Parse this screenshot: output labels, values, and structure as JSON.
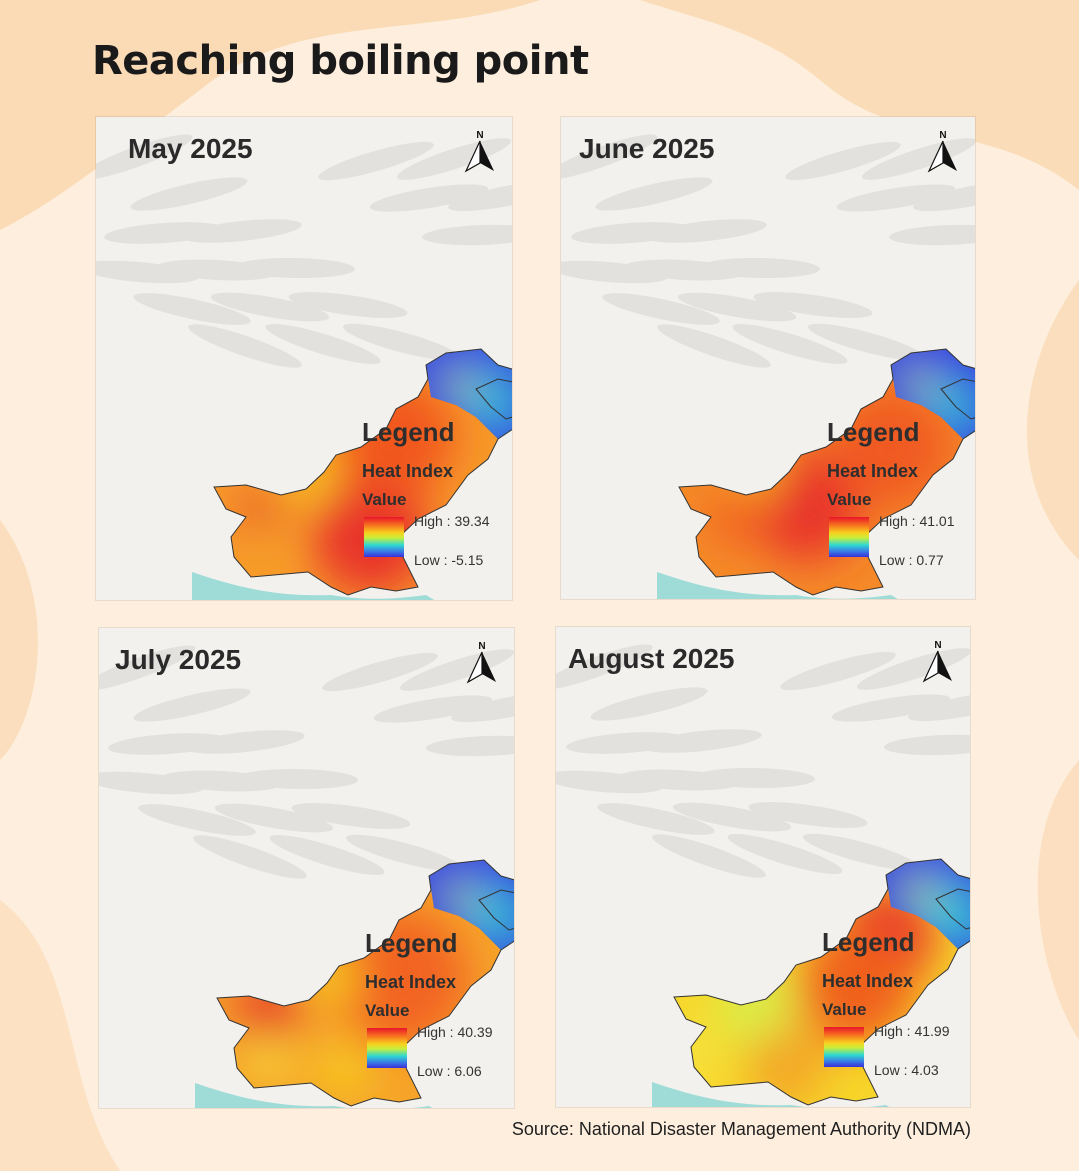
{
  "title": "Reaching boiling point",
  "source": "Source: National Disaster Management Authority (NDMA)",
  "legend_colors": {
    "high": "#e8142a",
    "mid": "#f7d21f",
    "low": "#3a2fd8"
  },
  "maps": [
    {
      "month": "May 2025",
      "north_label": "N",
      "legend": {
        "title": "Legend",
        "subtitle": "Heat Index",
        "value_label": "Value",
        "high": "High : 39.34",
        "low": "Low : -5.15"
      }
    },
    {
      "month": "June 2025",
      "north_label": "N",
      "legend": {
        "title": "Legend",
        "subtitle": "Heat Index",
        "value_label": "Value",
        "high": "High : 41.01",
        "low": "Low : 0.77"
      }
    },
    {
      "month": "July 2025",
      "north_label": "N",
      "legend": {
        "title": "Legend",
        "subtitle": "Heat Index",
        "value_label": "Value",
        "high": "High : 40.39",
        "low": "Low : 6.06"
      }
    },
    {
      "month": "August 2025",
      "north_label": "N",
      "legend": {
        "title": "Legend",
        "subtitle": "Heat Index",
        "value_label": "Value",
        "high": "High : 41.99",
        "low": "Low : 4.03"
      }
    }
  ]
}
